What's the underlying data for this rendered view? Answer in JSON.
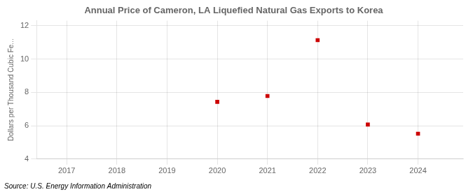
{
  "chart_data": {
    "type": "scatter",
    "title": "Annual Price of Cameron, LA Liquefied Natural Gas Exports to Korea",
    "ylabel": "Dollars per Thousand Cubic Fe...",
    "annotation": "Source: U.S. Energy Information Administration",
    "x": [
      2020,
      2021,
      2022,
      2023,
      2024
    ],
    "values": [
      7.43,
      7.78,
      11.13,
      6.07,
      5.52
    ],
    "color": "#cc0000",
    "marker": "square",
    "xlim": [
      2016.4,
      2024.9
    ],
    "xticks": [
      2017,
      2018,
      2019,
      2020,
      2021,
      2022,
      2023,
      2024
    ],
    "ylim": [
      4,
      12.3
    ],
    "yticks": [
      4,
      6,
      8,
      10,
      12
    ],
    "grid": true
  }
}
